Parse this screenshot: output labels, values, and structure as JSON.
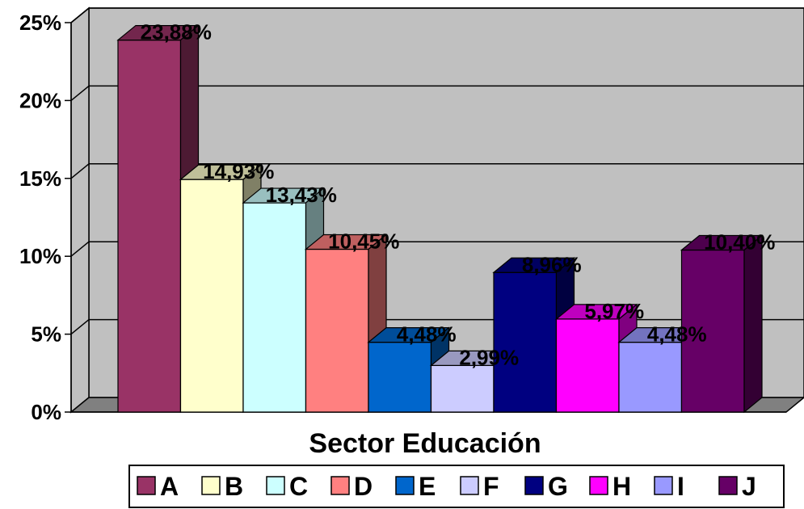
{
  "chart_data": {
    "type": "bar",
    "style": "3d-clustered-column",
    "xlabel": "Sector Educación",
    "ylabel": "",
    "ylim": [
      0,
      25
    ],
    "yticks": [
      "0%",
      "5%",
      "10%",
      "15%",
      "20%",
      "25%"
    ],
    "grid": true,
    "legend": "bottom",
    "series": [
      {
        "name": "A",
        "value": 23.88,
        "label": "23,88%",
        "color": "#993366"
      },
      {
        "name": "B",
        "value": 14.93,
        "label": "14,93%",
        "color": "#FFFFCC"
      },
      {
        "name": "C",
        "value": 13.43,
        "label": "13,43%",
        "color": "#CCFFFF"
      },
      {
        "name": "D",
        "value": 10.45,
        "label": "10,45%",
        "color": "#FF8080"
      },
      {
        "name": "E",
        "value": 4.48,
        "label": "4,48%",
        "color": "#0066CC"
      },
      {
        "name": "F",
        "value": 2.99,
        "label": "2,99%",
        "color": "#CCCCFF"
      },
      {
        "name": "G",
        "value": 8.96,
        "label": "8,96%",
        "color": "#000080"
      },
      {
        "name": "H",
        "value": 5.97,
        "label": "5,97%",
        "color": "#FF00FF"
      },
      {
        "name": "I",
        "value": 4.48,
        "label": "4,48%",
        "color": "#9999FF"
      },
      {
        "name": "J",
        "value": 10.4,
        "label": "10,40%",
        "color": "#660066"
      }
    ],
    "colors": {
      "wall": "#C0C0C0",
      "floor": "#808080",
      "gridline": "#000000"
    }
  }
}
